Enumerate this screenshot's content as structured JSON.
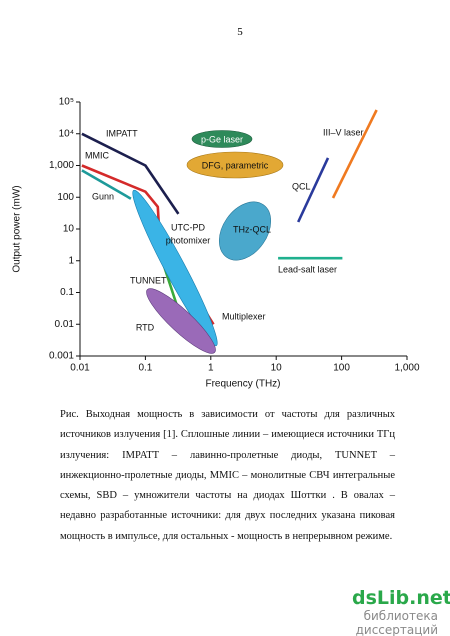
{
  "page_number": "5",
  "chart_data": {
    "type": "line",
    "xlabel": "Frequency (THz)",
    "ylabel": "Output power (mW)",
    "xscale": "log",
    "yscale": "log",
    "xlim": [
      0.01,
      1000
    ],
    "ylim": [
      0.001,
      100000
    ],
    "xticks": [
      0.01,
      0.1,
      1,
      10,
      100,
      {
        "value": 1000,
        "label": "1,000"
      }
    ],
    "yticks": [
      {
        "value": 0.001,
        "label": "0.001"
      },
      0.01,
      0.1,
      1,
      10,
      100,
      {
        "value": 1000,
        "label": "1,000"
      },
      {
        "value": 10000,
        "label": "10⁴"
      },
      {
        "value": 100000,
        "label": "10⁵"
      }
    ],
    "series": [
      {
        "name": "IMPATT",
        "color": "#1c1f4e",
        "x": [
          0.0107,
          0.1,
          0.32
        ],
        "values": [
          10000,
          1000,
          30
        ]
      },
      {
        "name": "MMIC",
        "color": "#d42a2a",
        "x": [
          0.0107,
          0.1,
          0.155,
          0.165,
          1.1
        ],
        "values": [
          1000,
          150,
          50,
          5,
          0.01
        ]
      },
      {
        "name": "Gunn",
        "color": "#1e9a9a",
        "x": [
          0.0107,
          0.06
        ],
        "values": [
          700,
          90
        ]
      },
      {
        "name": "TUNNET",
        "color": "#3aaa3a",
        "x": [
          0.17,
          0.32
        ],
        "values": [
          1.5,
          0.028
        ]
      },
      {
        "name": "QCL",
        "color": "#2a3a9c",
        "x": [
          21.7,
          62
        ],
        "values": [
          16.6,
          1730
        ]
      },
      {
        "name": "III–V laser",
        "color": "#f07a20",
        "x": [
          74,
          343
        ],
        "values": [
          95,
          56000
        ]
      },
      {
        "name": "Lead-salt laser",
        "color": "#1fb08e",
        "x": [
          10.7,
          103
        ],
        "values": [
          1.2,
          1.2
        ]
      }
    ],
    "annotations": [
      "Multiplexer",
      "p-Ge laser",
      "DFG, parametric",
      "THz-QCL",
      "UTC-PD",
      "photomixer",
      "RTD"
    ]
  },
  "caption": "Рис. Выходная мощность в зависимости от частоты для различных источников излучения [1]. Сплошные линии – имеющиеся источники ТГц излучения: IMPATT – лавинно-пролетные диоды, TUNNET – инжекционно-пролетные диоды, MMIC – монолитные СВЧ интегральные схемы, SBD – умножители частоты на диодах Шоттки . В овалах – недавно разработанные источники: для двух последних указана пиковая мощность в импульсе, для остальных - мощность в непрерывном режиме.",
  "watermark": {
    "site": "dsLib.net",
    "subtitle": "библиотека диссертаций"
  }
}
